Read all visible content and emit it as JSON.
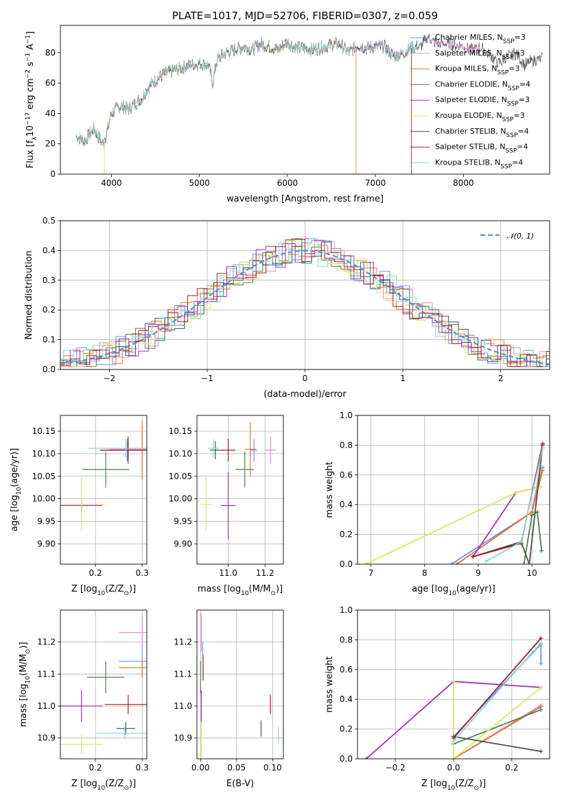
{
  "chart_data": [
    {
      "type": "line",
      "id": "spectrum",
      "title": "PLATE=1017, MJD=52706, FIBERID=0307, z=0.059",
      "xlabel": "wavelength [Angstrom, rest frame]",
      "ylabel": "Flux [f",
      "ylabel_sub": "λ",
      "ylabel_rest": "10",
      "ylabel_sup1": "−17",
      "ylabel_rest2": " erg cm",
      "ylabel_sup2": "−2",
      "ylabel_rest3": " s",
      "ylabel_sup3": "−1",
      "ylabel_rest4": " A",
      "ylabel_sup4": "−1",
      "ylabel_end": "]",
      "xlim": [
        3420,
        8980
      ],
      "ylim": [
        0,
        98
      ],
      "xticks": [
        4000,
        5000,
        6000,
        7000,
        8000
      ],
      "yticks": [
        0,
        20,
        40,
        60,
        80
      ],
      "grid": false,
      "legend_position": "upper-right",
      "continuum": {
        "x": [
          3600,
          3700,
          3800,
          3900,
          3950,
          4000,
          4100,
          4200,
          4300,
          4350,
          4400,
          4500,
          4600,
          4700,
          4800,
          4900,
          5000,
          5100,
          5150,
          5200,
          5300,
          5400,
          5500,
          5600,
          5700,
          5800,
          5900,
          6000,
          6100,
          6200,
          6300,
          6400,
          6500,
          6600,
          6700,
          6800,
          6900,
          7000,
          7100,
          7200,
          7300,
          7400,
          7500,
          7600,
          7700,
          7800,
          7900,
          8000,
          8100,
          8200,
          8300,
          8400,
          8500,
          8600,
          8700,
          8800,
          8900
        ],
        "y": [
          25,
          22,
          30,
          20,
          28,
          40,
          45,
          43,
          48,
          50,
          56,
          62,
          66,
          68,
          70,
          72,
          73,
          72,
          60,
          75,
          80,
          82,
          84,
          82,
          86,
          84,
          82,
          87,
          83,
          83,
          82,
          84,
          85,
          86,
          80,
          85,
          83,
          84,
          84,
          78,
          79,
          83,
          84,
          90,
          86,
          86,
          85,
          84,
          82,
          83,
          79,
          73,
          77,
          80,
          72,
          75,
          76
        ]
      },
      "series_names": [
        "Chabrier MILES, N",
        "Salpeter MILES, N",
        "Kroupa MILES, N",
        "Chabrier ELODIE, N",
        "Salpeter ELODIE, N",
        "Kroupa ELODIE, N",
        "Chabrier STELIB, N",
        "Salpeter STELIB, N",
        "Kroupa STELIB, N"
      ],
      "series_sub": "SSP",
      "series_nssp": [
        "=3",
        "=3",
        "=3",
        "=4",
        "=3",
        "=3",
        "=4",
        "=4",
        "=4"
      ],
      "series_colors": [
        "#6495ed",
        "#ee82c4",
        "#e07a28",
        "#4a7f4a",
        "#9b30b8",
        "#d9e85a",
        "#4d4d4d",
        "#b0171f",
        "#7fdbd9"
      ],
      "series_xmax": [
        8100,
        8200,
        7400,
        7600,
        7400,
        6800,
        8900,
        7400,
        7500
      ]
    },
    {
      "type": "histogram",
      "id": "residuals",
      "xlabel": "(data-model)/error",
      "ylabel": "Normed distribution",
      "xlim": [
        -2.5,
        2.5
      ],
      "ylim": [
        0,
        0.5
      ],
      "xticks": [
        -2,
        -1,
        0,
        1,
        2
      ],
      "yticks": [
        0.0,
        0.1,
        0.2,
        0.3,
        0.4,
        0.5
      ],
      "ytick_labels": [
        "0.0",
        "0.1",
        "0.2",
        "0.3",
        "0.4",
        "0.5"
      ],
      "xtick_labels": [
        "−2",
        "−1",
        "0",
        "1",
        "2"
      ],
      "grid": true,
      "reference": {
        "label": "𝒩(0, 1)",
        "color": "#5b8fd9",
        "style": "dashed"
      },
      "legend_position": "upper-right",
      "bin_width": 0.1
    },
    {
      "type": "errorbar",
      "id": "age-vs-Z",
      "xlabel": "Z [log",
      "xlabel_sub": "10",
      "xlabel_rest": "(Z/Z",
      "xlabel_sub2": "⊙",
      "xlabel_end": ")]",
      "ylabel": "age  [log",
      "ylabel_sub": "10",
      "ylabel_rest": "(age/yr)]",
      "xlim": [
        0.125,
        0.31
      ],
      "ylim": [
        9.855,
        10.185
      ],
      "xticks": [
        0.2,
        0.3
      ],
      "xtick_labels": [
        "0.2",
        "0.3"
      ],
      "yticks": [
        9.9,
        9.95,
        10.0,
        10.05,
        10.1,
        10.15
      ],
      "ytick_labels": [
        "9.90",
        "9.95",
        "10.00",
        "10.05",
        "10.10",
        "10.15"
      ],
      "grid": true,
      "points": [
        {
          "x": 0.268,
          "y": 10.108,
          "xerr": 0.04,
          "yerr": 0.025
        },
        {
          "x": 0.3,
          "y": 10.11,
          "xerr": 0.07,
          "yerr": 0.05
        },
        {
          "x": 0.3,
          "y": 10.108,
          "xerr": 0.02,
          "yerr": 0.065
        },
        {
          "x": 0.222,
          "y": 10.065,
          "xerr": 0.05,
          "yerr": 0.04
        },
        {
          "x": 0.17,
          "y": 9.985,
          "xerr": 0.045,
          "yerr": 0.01
        },
        {
          "x": 0.17,
          "y": 9.988,
          "xerr": 0.05,
          "yerr": 0.06
        },
        {
          "x": 0.27,
          "y": 10.108,
          "xerr": 0.06,
          "yerr": 0.02
        },
        {
          "x": 0.27,
          "y": 10.108,
          "xerr": 0.06,
          "yerr": 0.03
        },
        {
          "x": 0.265,
          "y": 10.112,
          "xerr": 0.08,
          "yerr": 0.02
        }
      ]
    },
    {
      "type": "errorbar",
      "id": "age-vs-mass",
      "xlabel": "mass [log",
      "xlabel_sub": "10",
      "xlabel_rest": "(M/M",
      "xlabel_sub2": "⊙",
      "xlabel_end": ")]",
      "xlim": [
        10.83,
        11.3
      ],
      "ylim": [
        9.855,
        10.185
      ],
      "xticks": [
        11.0,
        11.2
      ],
      "xtick_labels": [
        "11.0",
        "11.2"
      ],
      "yticks": [
        9.9,
        9.95,
        10.0,
        10.05,
        10.1,
        10.15
      ],
      "ytick_labels": [
        "9.90",
        "9.95",
        "10.00",
        "10.05",
        "10.10",
        "10.15"
      ],
      "grid": true,
      "points": [
        {
          "x": 11.14,
          "y": 10.108,
          "xerr": 0.02,
          "yerr": 0.025
        },
        {
          "x": 11.23,
          "y": 10.108,
          "xerr": 0.03,
          "yerr": 0.03
        },
        {
          "x": 11.12,
          "y": 10.11,
          "xerr": 0.03,
          "yerr": 0.06
        },
        {
          "x": 11.09,
          "y": 10.065,
          "xerr": 0.05,
          "yerr": 0.04
        },
        {
          "x": 11.0,
          "y": 9.985,
          "xerr": 0.04,
          "yerr": 0.075
        },
        {
          "x": 10.88,
          "y": 9.988,
          "xerr": 0.03,
          "yerr": 0.06
        },
        {
          "x": 10.93,
          "y": 10.108,
          "xerr": 0.03,
          "yerr": 0.02
        },
        {
          "x": 11.0,
          "y": 10.108,
          "xerr": 0.04,
          "yerr": 0.025
        },
        {
          "x": 10.92,
          "y": 10.112,
          "xerr": 0.03,
          "yerr": 0.02
        }
      ]
    },
    {
      "type": "line",
      "id": "mass-weight-vs-age",
      "xlabel": "age  [log",
      "xlabel_sub": "10",
      "xlabel_rest": "(age/yr)]",
      "ylabel": "mass weight",
      "xlim": [
        6.75,
        10.33
      ],
      "ylim": [
        0,
        1.0
      ],
      "xticks": [
        7,
        8,
        9,
        10
      ],
      "xtick_labels": [
        "7",
        "8",
        "9",
        "10"
      ],
      "yticks": [
        0.0,
        0.2,
        0.4,
        0.6,
        0.8,
        1.0
      ],
      "ytick_labels": [
        "0.0",
        "0.2",
        "0.4",
        "0.6",
        "0.8",
        "1.0"
      ],
      "grid": true,
      "series": [
        {
          "x": [
            8.5,
            10.0,
            10.2
          ],
          "y": [
            0.0,
            0.35,
            0.65
          ]
        },
        {
          "x": [
            8.6,
            10.0,
            10.15
          ],
          "y": [
            0.0,
            0.35,
            0.64
          ]
        },
        {
          "x": [
            8.6,
            10.0,
            10.2
          ],
          "y": [
            0.0,
            0.35,
            0.63
          ]
        },
        {
          "x": [
            9.85,
            10.0,
            10.1,
            10.18
          ],
          "y": [
            0.0,
            0.33,
            0.35,
            0.09
          ]
        },
        {
          "x": [
            8.9,
            9.7,
            10.15
          ],
          "y": [
            0.05,
            0.48,
            0.52
          ]
        },
        {
          "x": [
            6.9,
            9.7,
            10.15
          ],
          "y": [
            0.0,
            0.48,
            0.52
          ]
        },
        {
          "x": [
            8.9,
            9.8,
            9.95,
            10.2
          ],
          "y": [
            0.05,
            0.15,
            0.0,
            0.8
          ]
        },
        {
          "x": [
            8.9,
            9.8,
            10.2
          ],
          "y": [
            0.05,
            0.14,
            0.81
          ]
        },
        {
          "x": [
            9.15,
            9.8,
            10.2
          ],
          "y": [
            0.02,
            0.15,
            0.78
          ]
        }
      ]
    },
    {
      "type": "errorbar",
      "id": "mass-vs-Z",
      "xlabel": "Z [log",
      "xlabel_sub": "10",
      "xlabel_rest": "(Z/Z",
      "xlabel_sub2": "⊙",
      "xlabel_end": ")]",
      "ylabel": "mass [log",
      "ylabel_sub": "10",
      "ylabel_rest": "(M/M",
      "ylabel_sub2": "⊙",
      "ylabel_end": ")]",
      "xlim": [
        0.125,
        0.31
      ],
      "ylim": [
        10.835,
        11.3
      ],
      "xticks": [
        0.2,
        0.3
      ],
      "xtick_labels": [
        "0.2",
        "0.3"
      ],
      "yticks": [
        10.9,
        11.0,
        11.1,
        11.2
      ],
      "ytick_labels": [
        "10.9",
        "11.0",
        "11.1",
        "11.2"
      ],
      "grid": true,
      "points": [
        {
          "x": 0.3,
          "y": 11.14,
          "xerr": 0.05,
          "yerr": 0.05
        },
        {
          "x": 0.3,
          "y": 11.23,
          "xerr": 0.05,
          "yerr": 0.05
        },
        {
          "x": 0.3,
          "y": 11.12,
          "xerr": 0.05,
          "yerr": 0.03
        },
        {
          "x": 0.222,
          "y": 11.09,
          "xerr": 0.04,
          "yerr": 0.05
        },
        {
          "x": 0.17,
          "y": 11.0,
          "xerr": 0.045,
          "yerr": 0.05
        },
        {
          "x": 0.17,
          "y": 10.88,
          "xerr": 0.045,
          "yerr": 0.03
        },
        {
          "x": 0.265,
          "y": 10.93,
          "xerr": 0.02,
          "yerr": 0.02
        },
        {
          "x": 0.27,
          "y": 11.005,
          "xerr": 0.05,
          "yerr": 0.03
        },
        {
          "x": 0.262,
          "y": 10.915,
          "xerr": 0.06,
          "yerr": 0.02
        }
      ]
    },
    {
      "type": "errorbar",
      "id": "mass-vs-ebv",
      "xlabel": "E(B-V)",
      "xlim": [
        -0.005,
        0.115
      ],
      "ylim": [
        10.835,
        11.3
      ],
      "xticks": [
        0.0,
        0.05,
        0.1
      ],
      "xtick_labels": [
        "0.00",
        "0.05",
        "0.10"
      ],
      "yticks": [
        10.9,
        11.0,
        11.1,
        11.2
      ],
      "ytick_labels": [
        "10.9",
        "11.0",
        "11.1",
        "11.2"
      ],
      "grid": true,
      "points": [
        {
          "x": 0.003,
          "y": 11.14,
          "xerr": 0.0,
          "yerr": 0.06
        },
        {
          "x": 0.001,
          "y": 11.23,
          "xerr": 0.0,
          "yerr": 0.06
        },
        {
          "x": 0.004,
          "y": 11.12,
          "xerr": 0.0,
          "yerr": 0.04
        },
        {
          "x": 0.0,
          "y": 11.09,
          "xerr": 0.0,
          "yerr": 0.05
        },
        {
          "x": 0.001,
          "y": 11.0,
          "xerr": 0.0,
          "yerr": 0.05
        },
        {
          "x": 0.001,
          "y": 10.88,
          "xerr": 0.0,
          "yerr": 0.07
        },
        {
          "x": 0.084,
          "y": 10.93,
          "xerr": 0.0,
          "yerr": 0.025
        },
        {
          "x": 0.097,
          "y": 11.005,
          "xerr": 0.0,
          "yerr": 0.03
        },
        {
          "x": 0.108,
          "y": 10.91,
          "xerr": 0.0,
          "yerr": 0.025
        }
      ]
    },
    {
      "type": "line",
      "id": "mass-weight-vs-Z",
      "xlabel": "Z [log",
      "xlabel_sub": "10",
      "xlabel_rest": "(Z/Z",
      "xlabel_sub2": "⊙",
      "xlabel_end": ")]",
      "ylabel": "mass weight",
      "xlim": [
        -0.33,
        0.33
      ],
      "ylim": [
        0,
        1.0
      ],
      "xticks": [
        -0.2,
        0.0,
        0.2
      ],
      "xtick_labels": [
        "−0.2",
        "0.0",
        "0.2"
      ],
      "yticks": [
        0.0,
        0.2,
        0.4,
        0.6,
        0.8,
        1.0
      ],
      "ytick_labels": [
        "0.0",
        "0.2",
        "0.4",
        "0.6",
        "0.8",
        "1.0"
      ],
      "grid": true,
      "series": [
        {
          "x": [
            0.0,
            0.3,
            0.3
          ],
          "y": [
            0.15,
            0.77,
            0.64
          ]
        },
        {
          "x": [
            0.0,
            0.3
          ],
          "y": [
            0.0,
            0.36
          ]
        },
        {
          "x": [
            0.0,
            0.3
          ],
          "y": [
            0.0,
            0.35
          ]
        },
        {
          "x": [
            0.0,
            0.3
          ],
          "y": [
            0.1,
            0.33
          ]
        },
        {
          "x": [
            -0.3,
            0.0,
            0.3
          ],
          "y": [
            0.0,
            0.52,
            0.48
          ]
        },
        {
          "x": [
            0.0,
            0.0,
            0.3
          ],
          "y": [
            0.52,
            0.0,
            0.48
          ]
        },
        {
          "x": [
            0.0,
            0.3
          ],
          "y": [
            0.15,
            0.05
          ]
        },
        {
          "x": [
            0.0,
            0.3
          ],
          "y": [
            0.14,
            0.81
          ]
        },
        {
          "x": [
            0.0,
            0.3
          ],
          "y": [
            0.12,
            0.78
          ]
        }
      ]
    }
  ]
}
